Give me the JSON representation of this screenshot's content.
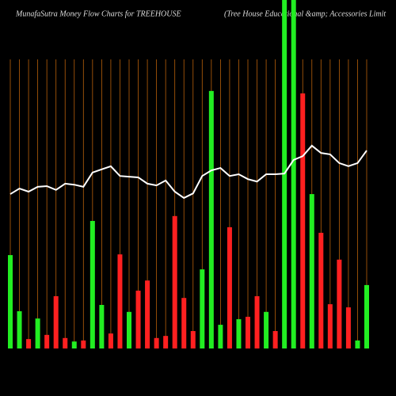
{
  "chart_data": {
    "type": "bar",
    "title": "MunafaSutra  Money Flow  Charts for TREEHOUSE",
    "subtitle": "(Tree  House  Educational  &amp; Accessories Limit",
    "categories": [
      null,
      null,
      null,
      null,
      null,
      null,
      null,
      null,
      null,
      null,
      null,
      null,
      null,
      null,
      null,
      null,
      null,
      null,
      null,
      null,
      null,
      null,
      null,
      null,
      null,
      null,
      null,
      null,
      null,
      null,
      null,
      null,
      null,
      null,
      null,
      null,
      null,
      null,
      null,
      null
    ],
    "values": [
      26.8,
      10.7,
      2.7,
      8.6,
      3.9,
      15,
      3,
      2,
      2.3,
      36.6,
      12.5,
      4.3,
      27,
      10.5,
      16.6,
      19.5,
      3,
      3.6,
      38,
      14.5,
      5,
      22.7,
      73.9,
      6.8,
      34.8,
      8.4,
      9.1,
      15,
      10.5,
      5,
      100,
      100,
      73.2,
      44.3,
      33.2,
      12.7,
      25.5,
      11.8,
      2.3,
      18.2
    ],
    "colors": [
      "#22ee22",
      "#22ee22",
      "#ff2020",
      "#22ee22",
      "#ff2020",
      "#ff2020",
      "#ff2020",
      "#22ee22",
      "#ff2020",
      "#22ee22",
      "#22ee22",
      "#ff2020",
      "#ff2020",
      "#22ee22",
      "#ff2020",
      "#ff2020",
      "#ff2020",
      "#ff2020",
      "#ff2020",
      "#ff2020",
      "#ff2020",
      "#22ee22",
      "#22ee22",
      "#22ee22",
      "#ff2020",
      "#22ee22",
      "#ff2020",
      "#ff2020",
      "#22ee22",
      "#ff2020",
      "#22ee22",
      "#22ee22",
      "#ff2020",
      "#22ee22",
      "#ff2020",
      "#ff2020",
      "#ff2020",
      "#ff2020",
      "#22ee22",
      "#22ee22"
    ],
    "line": {
      "color": "#ffffff",
      "values": [
        44.3,
        45.9,
        45,
        46.4,
        46.6,
        45.5,
        47.3,
        47,
        46.4,
        50.5,
        51.4,
        52.3,
        49.5,
        49.3,
        49.1,
        47.3,
        46.8,
        48.2,
        45,
        43.2,
        44.5,
        49.5,
        51.1,
        51.8,
        49.5,
        50,
        48.6,
        47.9,
        50,
        50,
        50.2,
        54.1,
        55.2,
        58.2,
        56.1,
        55.7,
        53.2,
        52.3,
        53.2,
        56.8
      ]
    },
    "ylim": [
      0,
      100
    ],
    "grid_color": "#b8600a"
  }
}
